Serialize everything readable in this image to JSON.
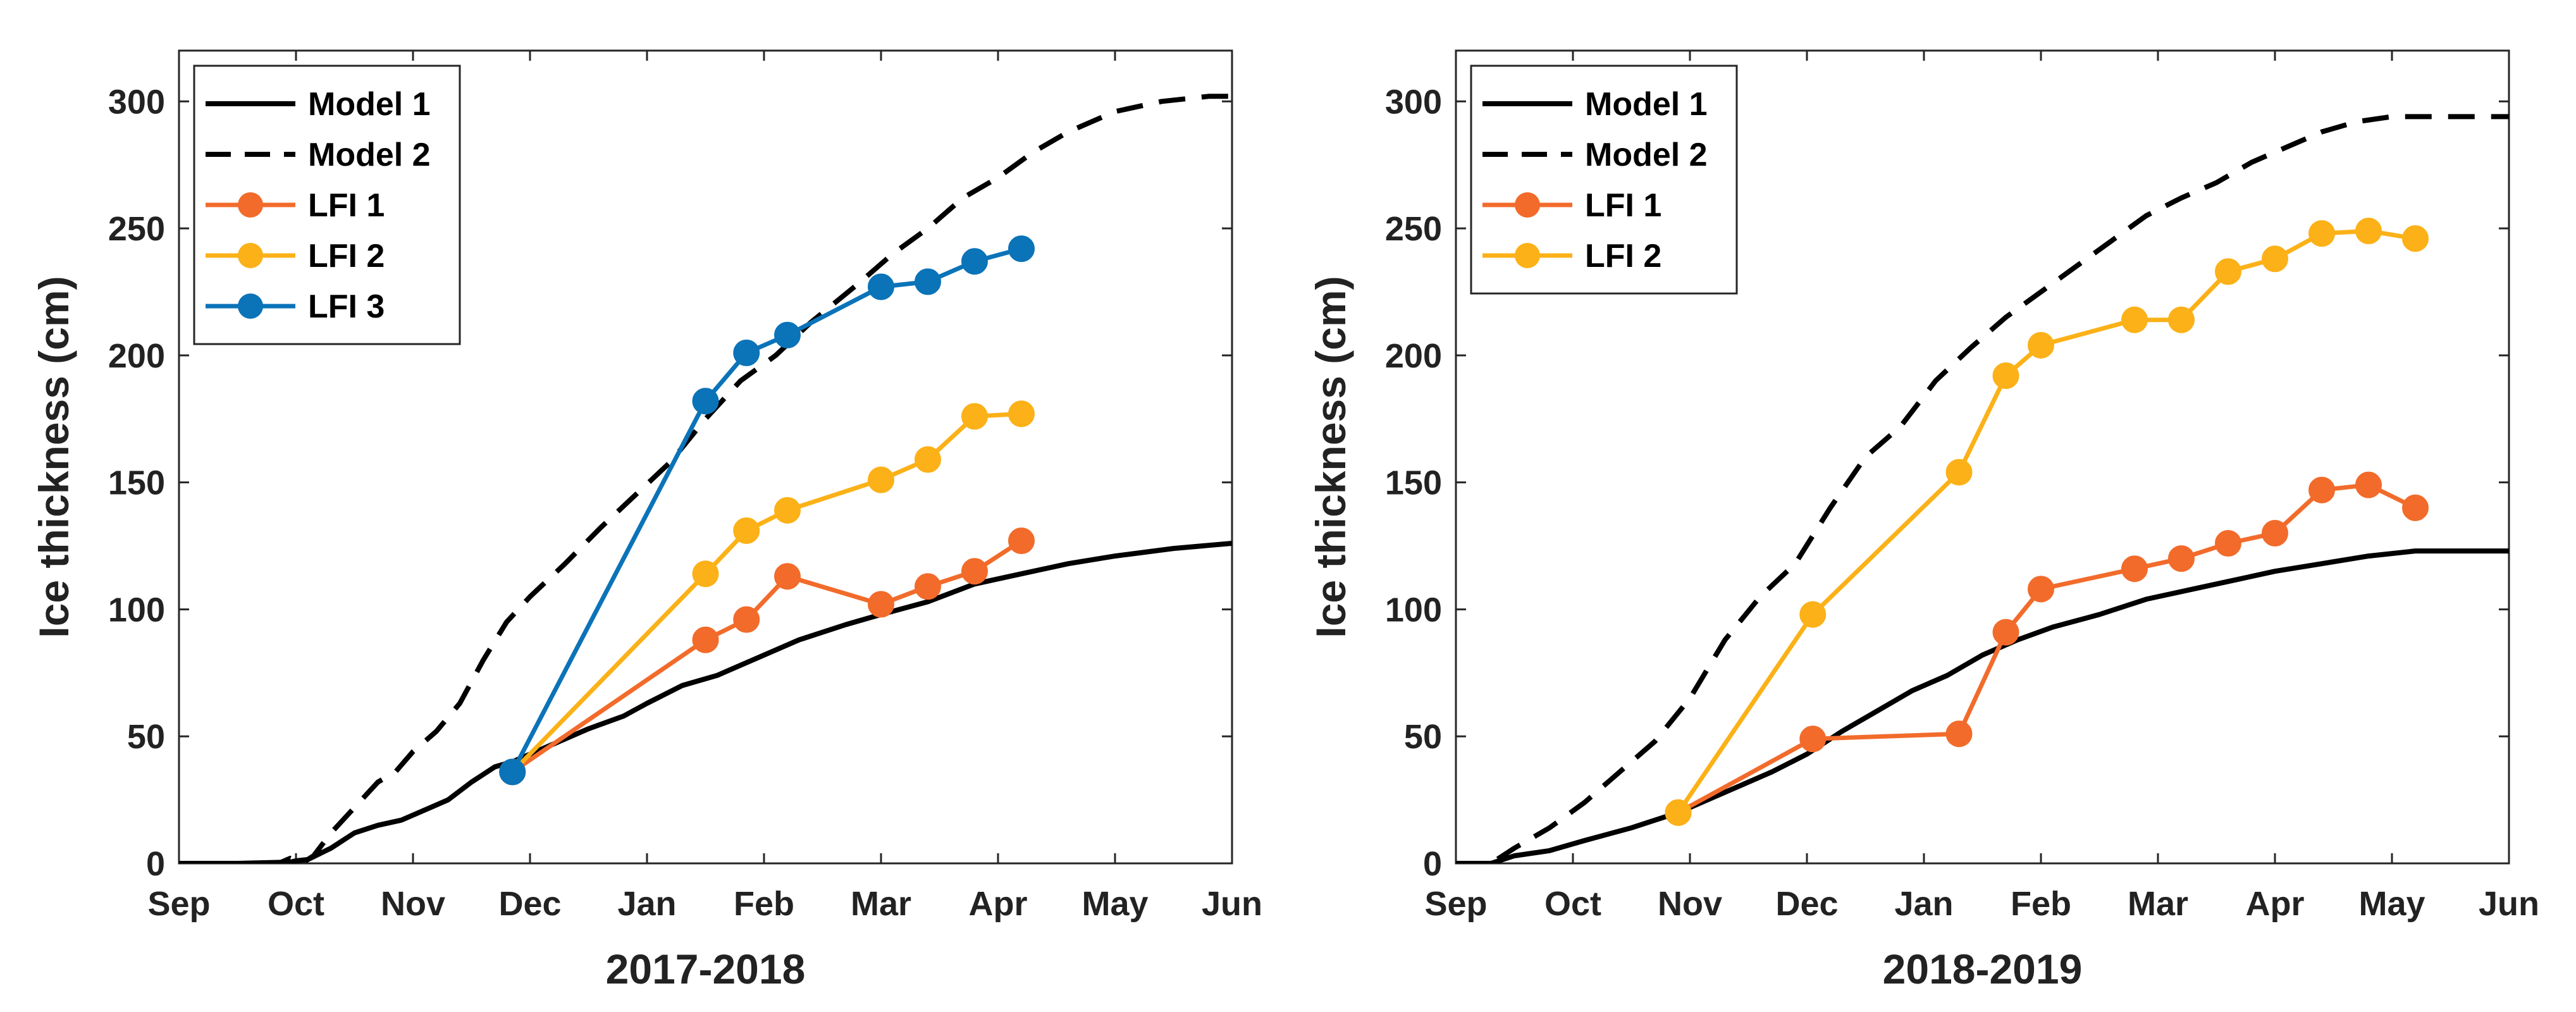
{
  "chart_data": [
    {
      "type": "line",
      "xlabel": "2017-2018",
      "ylabel": "Ice thickness (cm)",
      "xlim": [
        0,
        9
      ],
      "ylim": [
        0,
        320
      ],
      "yticks": [
        0,
        50,
        100,
        150,
        200,
        250,
        300
      ],
      "x_tick_labels": [
        "Sep",
        "Oct",
        "Nov",
        "Dec",
        "Jan",
        "Feb",
        "Mar",
        "Apr",
        "May",
        "Jun"
      ],
      "legend_position": "top-left",
      "series": [
        {
          "name": "Model 1",
          "style": "solid",
          "color": "#000000",
          "markers": false,
          "x": [
            0,
            0.5,
            0.95,
            1.0,
            1.1,
            1.3,
            1.5,
            1.7,
            1.9,
            2.1,
            2.3,
            2.5,
            2.7,
            2.85,
            3.0,
            3.2,
            3.5,
            3.8,
            4.0,
            4.3,
            4.6,
            5.0,
            5.3,
            5.7,
            6.0,
            6.4,
            6.8,
            7.2,
            7.6,
            8.0,
            8.5,
            9.0
          ],
          "y": [
            0,
            0,
            0.5,
            1,
            1.5,
            6,
            12,
            15,
            17,
            21,
            25,
            32,
            38,
            40,
            43,
            47,
            53,
            58,
            63,
            70,
            74,
            82,
            88,
            94,
            98,
            103,
            110,
            114,
            118,
            121,
            124,
            126
          ]
        },
        {
          "name": "Model 2",
          "style": "dashed",
          "color": "#000000",
          "markers": false,
          "x": [
            0,
            0.85,
            0.95,
            1.05,
            1.15,
            1.3,
            1.5,
            1.7,
            1.85,
            2.0,
            2.2,
            2.4,
            2.6,
            2.8,
            3.0,
            3.3,
            3.6,
            3.9,
            4.2,
            4.5,
            4.8,
            5.1,
            5.4,
            5.8,
            6.1,
            6.4,
            6.7,
            7.0,
            7.3,
            7.6,
            8.0,
            8.4,
            8.8,
            9.0
          ],
          "y": [
            0,
            0,
            2,
            0,
            3,
            12,
            22,
            32,
            36,
            44,
            52,
            63,
            80,
            95,
            105,
            118,
            132,
            145,
            158,
            175,
            190,
            200,
            213,
            228,
            240,
            250,
            262,
            270,
            280,
            288,
            296,
            300,
            302,
            302
          ]
        },
        {
          "name": "LFI 1",
          "style": "solid",
          "color": "#f26b2b",
          "markers": true,
          "x": [
            2.85,
            4.5,
            4.85,
            5.2,
            6.0,
            6.4,
            6.8,
            7.2
          ],
          "y": [
            36,
            88,
            96,
            113,
            102,
            109,
            115,
            127
          ]
        },
        {
          "name": "LFI 2",
          "style": "solid",
          "color": "#fbb117",
          "markers": true,
          "x": [
            2.85,
            4.5,
            4.85,
            5.2,
            6.0,
            6.4,
            6.8,
            7.2
          ],
          "y": [
            36,
            114,
            131,
            139,
            151,
            159,
            176,
            177
          ]
        },
        {
          "name": "LFI 3",
          "style": "solid",
          "color": "#0b73b8",
          "markers": true,
          "x": [
            2.85,
            4.5,
            4.85,
            5.2,
            6.0,
            6.4,
            6.8,
            7.2
          ],
          "y": [
            36,
            182,
            201,
            208,
            227,
            229,
            237,
            242
          ]
        }
      ]
    },
    {
      "type": "line",
      "xlabel": "2018-2019",
      "ylabel": "Ice thickness (cm)",
      "xlim": [
        0,
        9
      ],
      "ylim": [
        0,
        320
      ],
      "yticks": [
        0,
        50,
        100,
        150,
        200,
        250,
        300
      ],
      "x_tick_labels": [
        "Sep",
        "Oct",
        "Nov",
        "Dec",
        "Jan",
        "Feb",
        "Mar",
        "Apr",
        "May",
        "Jun"
      ],
      "legend_position": "top-left",
      "series": [
        {
          "name": "Model 1",
          "style": "solid",
          "color": "#000000",
          "markers": false,
          "x": [
            0,
            0.3,
            0.5,
            0.8,
            1.1,
            1.5,
            1.9,
            2.3,
            2.7,
            3.0,
            3.3,
            3.6,
            3.9,
            4.2,
            4.5,
            4.8,
            5.1,
            5.5,
            5.9,
            6.3,
            6.7,
            7.0,
            7.4,
            7.8,
            8.2,
            8.6,
            9.0
          ],
          "y": [
            0,
            0,
            3,
            5,
            9,
            14,
            20,
            28,
            36,
            43,
            52,
            60,
            68,
            74,
            82,
            88,
            93,
            98,
            104,
            108,
            112,
            115,
            118,
            121,
            123,
            123,
            123
          ]
        },
        {
          "name": "Model 2",
          "style": "dashed",
          "color": "#000000",
          "markers": false,
          "x": [
            0,
            0.3,
            0.5,
            0.8,
            1.1,
            1.4,
            1.7,
            2.0,
            2.3,
            2.6,
            2.9,
            3.2,
            3.5,
            3.8,
            4.1,
            4.4,
            4.7,
            5.0,
            5.3,
            5.6,
            5.9,
            6.2,
            6.5,
            6.8,
            7.1,
            7.4,
            7.7,
            8.0,
            8.3,
            8.6,
            9.0
          ],
          "y": [
            0,
            0,
            6,
            14,
            24,
            36,
            48,
            65,
            88,
            105,
            118,
            140,
            160,
            172,
            190,
            203,
            215,
            225,
            235,
            245,
            255,
            262,
            268,
            276,
            282,
            288,
            292,
            294,
            294,
            294,
            294
          ]
        },
        {
          "name": "LFI 1",
          "style": "solid",
          "color": "#f26b2b",
          "markers": true,
          "x": [
            1.9,
            3.05,
            4.3,
            4.7,
            5.0,
            5.8,
            6.2,
            6.6,
            7.0,
            7.4,
            7.8,
            8.2
          ],
          "y": [
            20,
            49,
            51,
            91,
            108,
            116,
            120,
            126,
            130,
            147,
            149,
            140
          ]
        },
        {
          "name": "LFI 2",
          "style": "solid",
          "color": "#fbb117",
          "markers": true,
          "x": [
            1.9,
            3.05,
            4.3,
            4.7,
            5.0,
            5.8,
            6.2,
            6.6,
            7.0,
            7.4,
            7.8,
            8.2
          ],
          "y": [
            20,
            98,
            154,
            192,
            204,
            214,
            214,
            233,
            238,
            248,
            249,
            246
          ]
        }
      ]
    }
  ]
}
